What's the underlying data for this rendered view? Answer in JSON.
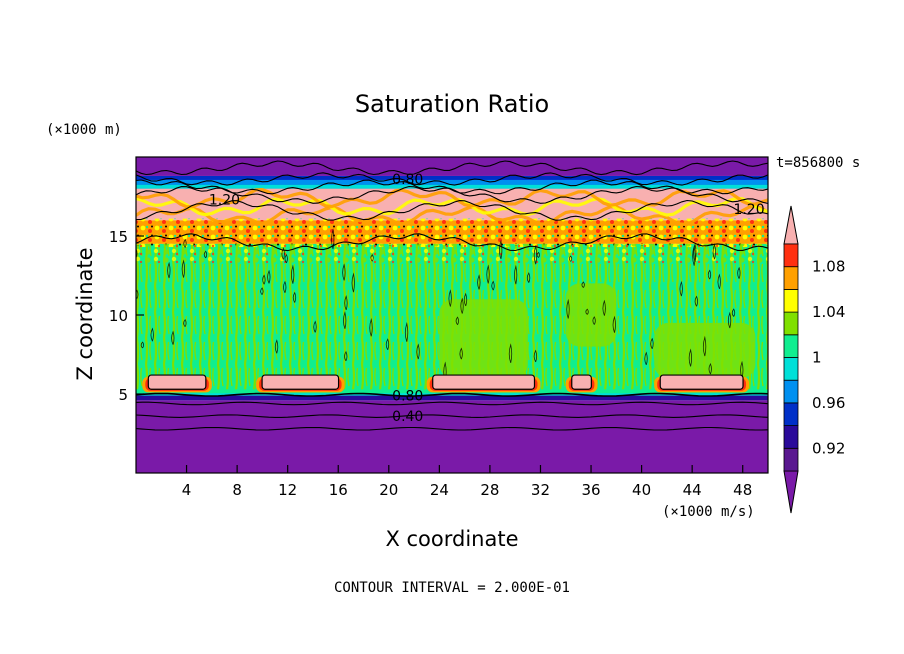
{
  "chart_data": {
    "type": "heatmap",
    "title": "Saturation Ratio",
    "xlabel": "X coordinate",
    "ylabel": "Z coordinate",
    "x_unit": "(×1000 m/s)",
    "y_unit": "(×1000 m)",
    "time_label": "t=856800 s",
    "footer": "CONTOUR INTERVAL = 2.000E-01",
    "xlim": [
      0,
      50
    ],
    "ylim": [
      0,
      20
    ],
    "x_ticks": [
      4,
      8,
      12,
      16,
      20,
      24,
      28,
      32,
      36,
      40,
      44,
      48
    ],
    "y_ticks": [
      5,
      10,
      15
    ],
    "contour_labels": [
      "1.20",
      "0.80",
      "1.20",
      "0.80",
      "0.40"
    ],
    "colorbar": {
      "levels": [
        0.9,
        0.92,
        0.94,
        0.96,
        0.98,
        1.0,
        1.02,
        1.04,
        1.06,
        1.08,
        1.1
      ],
      "tick_labels": [
        "0.92",
        "0.96",
        "1",
        "1.04",
        "1.08"
      ],
      "tick_values": [
        0.92,
        0.96,
        1.0,
        1.04,
        1.08
      ],
      "colors": [
        "#5a1890",
        "#2a0a9a",
        "#0030c8",
        "#0090f0",
        "#00e0d8",
        "#10ee90",
        "#80e000",
        "#ffff00",
        "#ffa000",
        "#ff3010",
        "#f8b0b0"
      ],
      "under_color": "#7a1aa8",
      "over_color": "#f8b0b0"
    },
    "bands": [
      {
        "z": [
          0,
          4.6
        ],
        "value": 0.5,
        "color": "#7a1aa8"
      },
      {
        "z": [
          4.6,
          5.0
        ],
        "value": 0.88,
        "color": "#2a0a9a"
      },
      {
        "z": [
          5.0,
          14.5
        ],
        "value": 0.99,
        "color": "#10ee90"
      },
      {
        "z": [
          14.5,
          16.0
        ],
        "value": 1.06,
        "color": "#ffa000"
      },
      {
        "z": [
          16.0,
          18.0
        ],
        "value": 1.2,
        "color": "#f8b0b0"
      },
      {
        "z": [
          18.0,
          18.8
        ],
        "value": 0.9,
        "color": "#0030c8"
      },
      {
        "z": [
          18.8,
          20
        ],
        "value": 0.6,
        "color": "#7a1aa8"
      }
    ],
    "low_cloud_patches": [
      {
        "x": [
          0.5,
          6.0
        ]
      },
      {
        "x": [
          9.5,
          16.5
        ]
      },
      {
        "x": [
          23.0,
          32.0
        ]
      },
      {
        "x": [
          34.0,
          36.5
        ]
      },
      {
        "x": [
          41.0,
          48.5
        ]
      }
    ]
  }
}
